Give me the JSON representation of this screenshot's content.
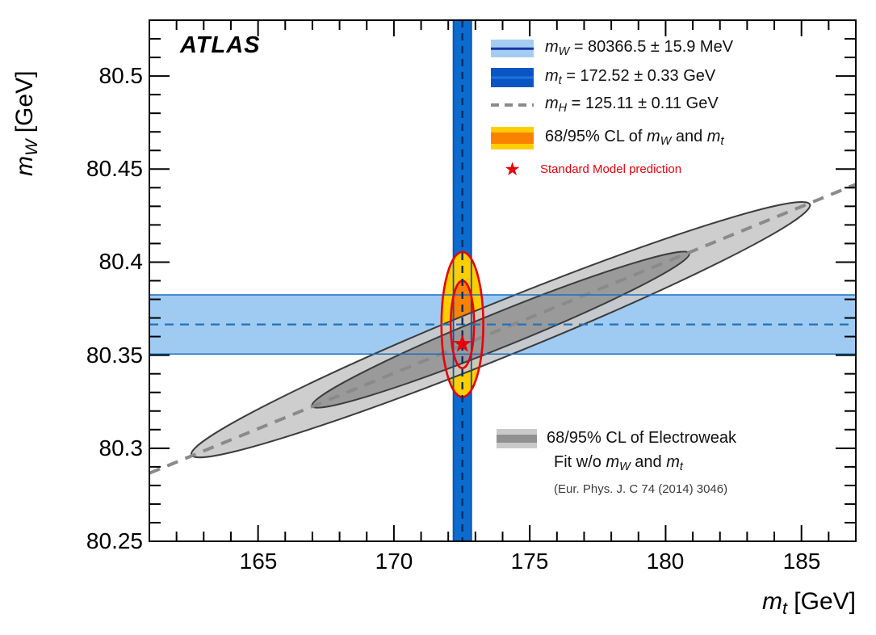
{
  "figure": {
    "atlas_label": "ATLAS"
  },
  "icons": {
    "star": "★"
  },
  "chart_data": {
    "type": "scatter",
    "description": "W boson mass versus top quark mass: measured one-dimensional bands, 68/95% CL ellipses of the measurement, electroweak-fit 68/95% CL ellipses and the Standard Model prediction",
    "xlabel_segments": [
      {
        "i": "m"
      },
      {
        "s": "t"
      },
      {
        "t": " [GeV]"
      }
    ],
    "ylabel_segments": [
      {
        "i": "m"
      },
      {
        "s": "W"
      },
      {
        "t": " [GeV]"
      }
    ],
    "xlim": [
      161,
      187
    ],
    "ylim": [
      80.25,
      80.53
    ],
    "x_major_ticks": [
      165,
      170,
      175,
      180,
      185
    ],
    "x_tick_labels": [
      "165",
      "170",
      "175",
      "180",
      "185"
    ],
    "x_minor_step": 1,
    "y_major_ticks": [
      80.25,
      80.3,
      80.35,
      80.4,
      80.45,
      80.5
    ],
    "y_tick_labels": [
      "80.25",
      "80.3",
      "80.35",
      "80.4",
      "80.45",
      "80.5"
    ],
    "y_minor_step": 0.01,
    "mw_measurement": {
      "value_mev": 80366.5,
      "uncertainty_mev": 15.9,
      "value_gev": 80.3665,
      "uncertainty_gev": 0.0159,
      "band_fill": "#9FCBF2",
      "edge_color": "#1C6FC0",
      "centerline_color": "#2272B8"
    },
    "mt_measurement": {
      "value_gev": 172.52,
      "uncertainty_gev": 0.33,
      "band_fill": "#0C6BCE",
      "edge_color": "#0A55AD",
      "centerline_color": "#0B2E5F"
    },
    "mh_line": {
      "value_gev": 125.11,
      "uncertainty_gev": 0.11,
      "x1": 161,
      "y1": 80.2866,
      "x2": 187,
      "y2": 80.4418,
      "color": "#8A8A8A"
    },
    "sm_prediction": {
      "mt": 172.52,
      "mw": 80.356,
      "color": "#E8000B"
    },
    "mwmt_ellipses": {
      "center": {
        "mt": 172.52,
        "mw": 80.3665
      },
      "cl95": {
        "rx_gev": 0.77,
        "ry_gev": 0.039,
        "fill": "#FFCE00"
      },
      "cl68": {
        "rx_gev": 0.43,
        "ry_gev": 0.0235,
        "fill": "#FB8100"
      },
      "contour_color": "#E8000B"
    },
    "ew_fit_ellipses": {
      "center": {
        "mt": 173.93,
        "mw": 80.3637
      },
      "tip_offset": {
        "dx_gev": 11.38,
        "dy_gev": 0.0673
      },
      "cl95": {
        "half_major_frac": 1.0,
        "vertical_half_chord_gev": 0.0156,
        "fill": "#C9C9C9"
      },
      "cl68": {
        "half_major_frac": 0.61,
        "vertical_half_chord_gev": 0.01,
        "fill": "#959595"
      },
      "outline_color": "#3C3C3C",
      "fill_opacity": 0.9
    }
  },
  "legend_measurements": {
    "items": [
      {
        "swatch": "lightblue",
        "segments": [
          {
            "i": "m"
          },
          {
            "s": "W"
          },
          {
            "t": " = 80366.5 ± 15.9 MeV"
          }
        ]
      },
      {
        "swatch": "darkblue",
        "segments": [
          {
            "i": "m"
          },
          {
            "s": "t"
          },
          {
            "t": " = 172.52 ± 0.33 GeV"
          }
        ]
      },
      {
        "swatch": "dashed",
        "segments": [
          {
            "i": "m"
          },
          {
            "s": "H"
          },
          {
            "t": " = 125.11 ± 0.11 GeV"
          }
        ]
      },
      {
        "swatch": "orange",
        "segments": [
          {
            "t": "68/95% CL of "
          },
          {
            "i": "m"
          },
          {
            "s": "W"
          },
          {
            "t": " and "
          },
          {
            "i": "m"
          },
          {
            "s": "t"
          }
        ]
      },
      {
        "swatch": "star",
        "segments": [
          {
            "t": "Standard Model prediction"
          }
        ],
        "small": true,
        "color": "#E8000B"
      }
    ]
  },
  "legend_ew_fit": {
    "swatch": "graybands",
    "lines": [
      {
        "segments": [
          {
            "t": "68/95% CL of Electroweak"
          }
        ]
      },
      {
        "segments": [
          {
            "t": "Fit w/o "
          },
          {
            "i": "m"
          },
          {
            "s": "W"
          },
          {
            "t": " and "
          },
          {
            "i": "m"
          },
          {
            "s": "t"
          }
        ],
        "indent": true
      },
      {
        "segments": [
          {
            "t": "(Eur. Phys. J. C 74 (2014) 3046)"
          }
        ],
        "indent": true,
        "small": true
      }
    ]
  }
}
